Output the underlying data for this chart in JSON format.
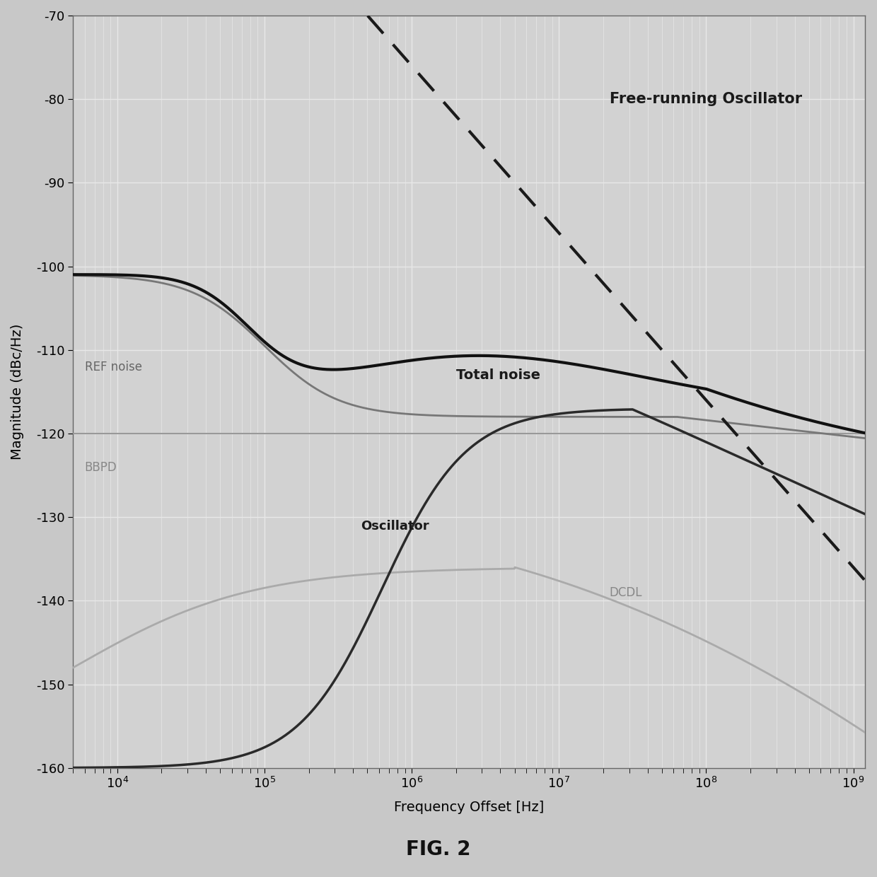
{
  "xlabel": "Frequency Offset [Hz]",
  "ylabel": "Magnitude (dBc/Hz)",
  "xlim": [
    5000,
    1200000000
  ],
  "ylim": [
    -160,
    -70
  ],
  "yticks": [
    -160,
    -150,
    -140,
    -130,
    -120,
    -110,
    -100,
    -90,
    -80,
    -70
  ],
  "fig_title": "FIG. 2",
  "fig_bg": "#c8c8c8",
  "ax_bg": "#d2d2d2",
  "grid_color": "#e8e8e8",
  "label_fontsize": 14,
  "tick_fontsize": 13,
  "title_fontsize": 20,
  "annotations": {
    "free_running_text": "Free-running Oscillator",
    "free_running_x": 22000000.0,
    "free_running_y": -80.5,
    "ref_noise_text": "REF noise",
    "ref_noise_x": 6000,
    "ref_noise_y": -112.5,
    "total_noise_text": "Total noise",
    "total_noise_x": 2000000.0,
    "total_noise_y": -113.5,
    "bbpd_text": "BBPD",
    "bbpd_x": 6000,
    "bbpd_y": -124.5,
    "oscillator_text": "Oscillator",
    "oscillator_x": 450000.0,
    "oscillator_y": -131.5,
    "dcdl_text": "DCDL",
    "dcdl_x": 22000000.0,
    "dcdl_y": -139.5
  }
}
